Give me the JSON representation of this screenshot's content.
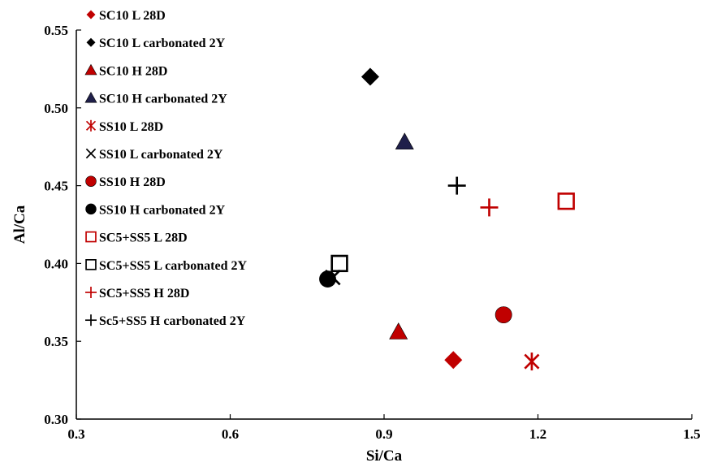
{
  "chart_data": {
    "type": "scatter",
    "xlabel": "Si/Ca",
    "ylabel": "Al/Ca",
    "xlim": [
      0.3,
      1.5
    ],
    "ylim": [
      0.3,
      0.55
    ],
    "xticks": [
      "0.3",
      "0.6",
      "0.9",
      "1.2",
      "1.5"
    ],
    "yticks": [
      "0.30",
      "0.35",
      "0.40",
      "0.45",
      "0.50",
      "0.55"
    ],
    "grid": false,
    "legend_position": "top-left",
    "colors": {
      "red": "#c00000",
      "black": "#000000",
      "navy": "#1f1f4a"
    },
    "series": [
      {
        "name": "SC10 L 28D",
        "marker": "diamond",
        "color": "#c00000",
        "x": 1.035,
        "y": 0.338
      },
      {
        "name": "SC10 L carbonated 2Y",
        "marker": "diamond",
        "color": "#000000",
        "x": 0.873,
        "y": 0.52
      },
      {
        "name": "SC10 H 28D",
        "marker": "triangle",
        "color": "#c00000",
        "x": 0.928,
        "y": 0.356
      },
      {
        "name": "SC10 H carbonated 2Y",
        "marker": "triangle",
        "color": "#1f1f4a",
        "x": 0.94,
        "y": 0.478
      },
      {
        "name": "SS10 L 28D",
        "marker": "asterisk",
        "color": "#c00000",
        "x": 1.188,
        "y": 0.337
      },
      {
        "name": "SS10 L carbonated 2Y",
        "marker": "x",
        "color": "#000000",
        "x": 0.8,
        "y": 0.391
      },
      {
        "name": "SS10 H 28D",
        "marker": "circle",
        "color": "#c00000",
        "x": 1.133,
        "y": 0.367
      },
      {
        "name": "SS10 H carbonated 2Y",
        "marker": "circle",
        "color": "#000000",
        "x": 0.79,
        "y": 0.39
      },
      {
        "name": "SC5+SS5 L 28D",
        "marker": "square-open",
        "color": "#c00000",
        "x": 1.255,
        "y": 0.44
      },
      {
        "name": "SC5+SS5 L carbonated 2Y",
        "marker": "square-open",
        "color": "#000000",
        "x": 0.813,
        "y": 0.4
      },
      {
        "name": "SC5+SS5 H 28D",
        "marker": "plus",
        "color": "#c00000",
        "x": 1.105,
        "y": 0.436
      },
      {
        "name": "Sc5+SS5 H carbonated 2Y",
        "marker": "plus",
        "color": "#000000",
        "x": 1.042,
        "y": 0.45
      }
    ]
  }
}
